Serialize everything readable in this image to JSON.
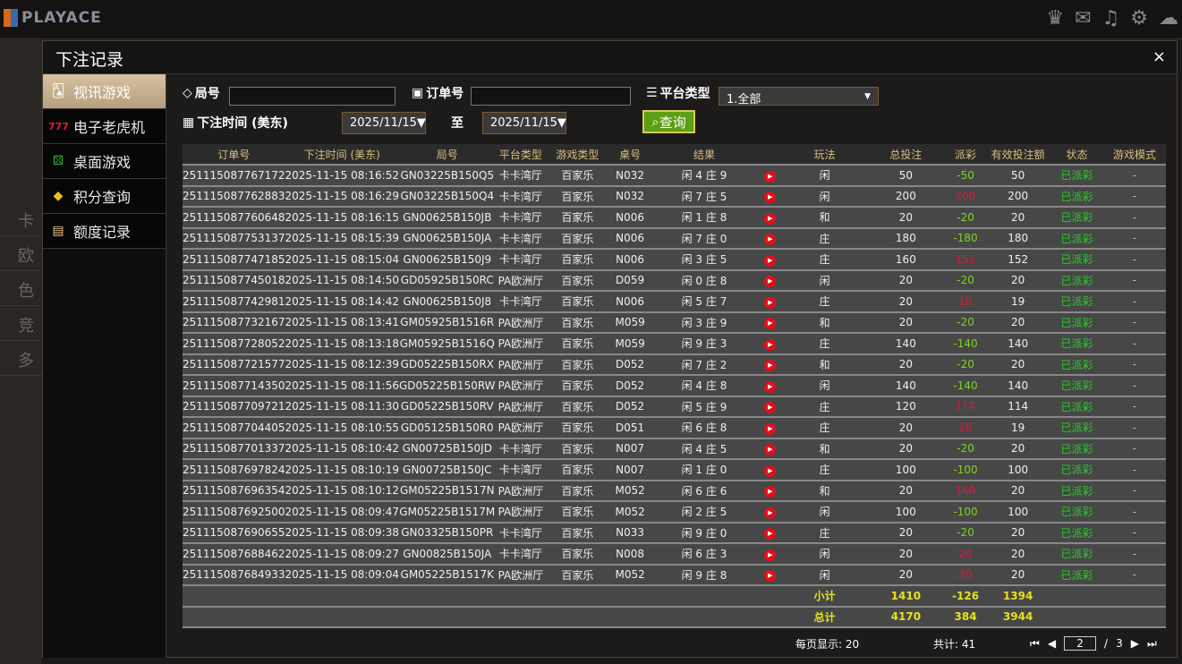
{
  "app": {
    "logo": "PLAYACE",
    "icons": [
      "vip-icon",
      "chat-icon",
      "music-icon",
      "gear-icon",
      "message-icon"
    ]
  },
  "background_nav": [
    "卡",
    "欧",
    "色",
    "竞",
    "多"
  ],
  "modal": {
    "title": "下注记录",
    "close": "×"
  },
  "sidebar": {
    "items": [
      {
        "label": "视讯游戏",
        "icon": "cards-icon",
        "active": true
      },
      {
        "label": "电子老虎机",
        "icon": "slot-777-icon"
      },
      {
        "label": "桌面游戏",
        "icon": "dice-icon"
      },
      {
        "label": "积分查询",
        "icon": "diamond-icon"
      },
      {
        "label": "额度记录",
        "icon": "document-icon"
      }
    ]
  },
  "filters": {
    "round_label": "局号",
    "round_value": "",
    "order_label": "订单号",
    "order_value": "",
    "platform_label": "平台类型",
    "platform_value": "1.全部",
    "time_label": "下注时间 (美东)",
    "date_from": "2025/11/15▼",
    "to_label": "至",
    "date_to": "2025/11/15▼",
    "query_button": "查询"
  },
  "table": {
    "headers": [
      "订单号",
      "下注时间 (美东)",
      "局号",
      "平台类型",
      "游戏类型",
      "桌号",
      "结果",
      "",
      "玩法",
      "总投注",
      "派彩",
      "有效投注额",
      "状态",
      "游戏模式"
    ],
    "rows": [
      [
        "251115087767172",
        "2025-11-15 08:16:52",
        "GN03225B150Q5",
        "卡卡湾厅",
        "百家乐",
        "N032",
        "闲 4 庄 9",
        "闲",
        "50",
        "-50",
        "50",
        "已派彩",
        "-"
      ],
      [
        "251115087762883",
        "2025-11-15 08:16:29",
        "GN03225B150Q4",
        "卡卡湾厅",
        "百家乐",
        "N032",
        "闲 7 庄 5",
        "闲",
        "200",
        "200",
        "200",
        "已派彩",
        "-"
      ],
      [
        "251115087760648",
        "2025-11-15 08:16:15",
        "GN00625B150JB",
        "卡卡湾厅",
        "百家乐",
        "N006",
        "闲 1 庄 8",
        "和",
        "20",
        "-20",
        "20",
        "已派彩",
        "-"
      ],
      [
        "251115087753137",
        "2025-11-15 08:15:39",
        "GN00625B150JA",
        "卡卡湾厅",
        "百家乐",
        "N006",
        "闲 7 庄 0",
        "庄",
        "180",
        "-180",
        "180",
        "已派彩",
        "-"
      ],
      [
        "251115087747185",
        "2025-11-15 08:15:04",
        "GN00625B150J9",
        "卡卡湾厅",
        "百家乐",
        "N006",
        "闲 3 庄 5",
        "庄",
        "160",
        "152",
        "152",
        "已派彩",
        "-"
      ],
      [
        "251115087745018",
        "2025-11-15 08:14:50",
        "GD05925B150RC",
        "PA欧洲厅",
        "百家乐",
        "D059",
        "闲 0 庄 8",
        "闲",
        "20",
        "-20",
        "20",
        "已派彩",
        "-"
      ],
      [
        "251115087742981",
        "2025-11-15 08:14:42",
        "GN00625B150J8",
        "卡卡湾厅",
        "百家乐",
        "N006",
        "闲 5 庄 7",
        "庄",
        "20",
        "19",
        "19",
        "已派彩",
        "-"
      ],
      [
        "251115087732167",
        "2025-11-15 08:13:41",
        "GM05925B1516R",
        "PA欧洲厅",
        "百家乐",
        "M059",
        "闲 3 庄 9",
        "和",
        "20",
        "-20",
        "20",
        "已派彩",
        "-"
      ],
      [
        "251115087728052",
        "2025-11-15 08:13:18",
        "GM05925B1516Q",
        "PA欧洲厅",
        "百家乐",
        "M059",
        "闲 9 庄 3",
        "庄",
        "140",
        "-140",
        "140",
        "已派彩",
        "-"
      ],
      [
        "251115087721577",
        "2025-11-15 08:12:39",
        "GD05225B150RX",
        "PA欧洲厅",
        "百家乐",
        "D052",
        "闲 7 庄 2",
        "和",
        "20",
        "-20",
        "20",
        "已派彩",
        "-"
      ],
      [
        "251115087714350",
        "2025-11-15 08:11:56",
        "GD05225B150RW",
        "PA欧洲厅",
        "百家乐",
        "D052",
        "闲 4 庄 8",
        "闲",
        "140",
        "-140",
        "140",
        "已派彩",
        "-"
      ],
      [
        "251115087709721",
        "2025-11-15 08:11:30",
        "GD05225B150RV",
        "PA欧洲厅",
        "百家乐",
        "D052",
        "闲 5 庄 9",
        "庄",
        "120",
        "114",
        "114",
        "已派彩",
        "-"
      ],
      [
        "251115087704405",
        "2025-11-15 08:10:55",
        "GD05125B150R0",
        "PA欧洲厅",
        "百家乐",
        "D051",
        "闲 6 庄 8",
        "庄",
        "20",
        "19",
        "19",
        "已派彩",
        "-"
      ],
      [
        "251115087701337",
        "2025-11-15 08:10:42",
        "GN00725B150JD",
        "卡卡湾厅",
        "百家乐",
        "N007",
        "闲 4 庄 5",
        "和",
        "20",
        "-20",
        "20",
        "已派彩",
        "-"
      ],
      [
        "251115087697824",
        "2025-11-15 08:10:19",
        "GN00725B150JC",
        "卡卡湾厅",
        "百家乐",
        "N007",
        "闲 1 庄 0",
        "庄",
        "100",
        "-100",
        "100",
        "已派彩",
        "-"
      ],
      [
        "251115087696354",
        "2025-11-15 08:10:12",
        "GM05225B1517N",
        "PA欧洲厅",
        "百家乐",
        "M052",
        "闲 6 庄 6",
        "和",
        "20",
        "160",
        "20",
        "已派彩",
        "-"
      ],
      [
        "251115087692500",
        "2025-11-15 08:09:47",
        "GM05225B1517M",
        "PA欧洲厅",
        "百家乐",
        "M052",
        "闲 2 庄 5",
        "闲",
        "100",
        "-100",
        "100",
        "已派彩",
        "-"
      ],
      [
        "251115087690655",
        "2025-11-15 08:09:38",
        "GN03325B150PR",
        "卡卡湾厅",
        "百家乐",
        "N033",
        "闲 9 庄 0",
        "庄",
        "20",
        "-20",
        "20",
        "已派彩",
        "-"
      ],
      [
        "251115087688462",
        "2025-11-15 08:09:27",
        "GN00825B150JA",
        "卡卡湾厅",
        "百家乐",
        "N008",
        "闲 6 庄 3",
        "闲",
        "20",
        "20",
        "20",
        "已派彩",
        "-"
      ],
      [
        "251115087684933",
        "2025-11-15 08:09:04",
        "GM05225B1517K",
        "PA欧洲厅",
        "百家乐",
        "M052",
        "闲 9 庄 8",
        "闲",
        "20",
        "20",
        "20",
        "已派彩",
        "-"
      ]
    ],
    "subtotal": {
      "label": "小计",
      "total_bet": "1410",
      "payout": "-126",
      "valid_bet": "1394"
    },
    "total": {
      "label": "总计",
      "total_bet": "4170",
      "payout": "384",
      "valid_bet": "3944"
    }
  },
  "pager": {
    "per_page": "每页显示: 20",
    "count": "共计: 41",
    "current": "2",
    "sep": "/",
    "pages": "3"
  },
  "colors": {
    "header_text": "#d9bd80",
    "payout_negative": "#7ed321",
    "payout_positive": "#c8203a",
    "status": "#22d022",
    "totals": "#e6e21c",
    "query_button": "#5c9e14"
  }
}
